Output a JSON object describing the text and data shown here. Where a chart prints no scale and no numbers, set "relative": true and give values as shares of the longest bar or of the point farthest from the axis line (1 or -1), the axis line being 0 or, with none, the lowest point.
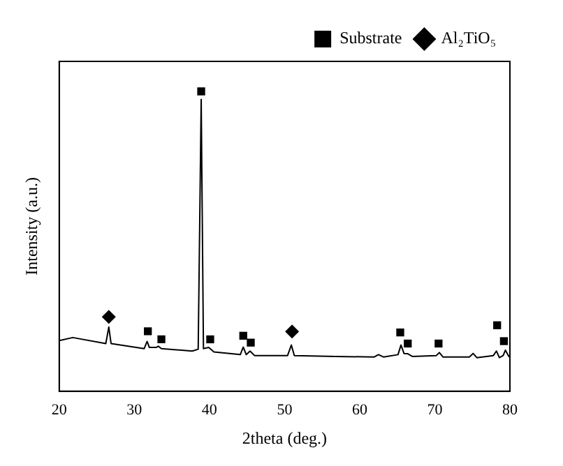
{
  "chart_data": {
    "type": "line",
    "xlabel": "2theta (deg.)",
    "ylabel": "Intensity (a.u.)",
    "relative": true,
    "xlim": [
      20,
      80
    ],
    "xticks": [
      20,
      30,
      40,
      50,
      60,
      70,
      80
    ],
    "legend": "top right",
    "series": [
      {
        "type": "line",
        "color": "#000000",
        "marker": "none",
        "x": [
          20,
          21.8,
          26.2,
          26.6,
          26.9,
          31.3,
          31.7,
          32.0,
          32.9,
          33.2,
          33.6,
          37.7,
          38.5,
          38.9,
          39.2,
          39.9,
          40.6,
          44.1,
          44.5,
          44.9,
          45.4,
          46.0,
          50.4,
          50.9,
          51.3,
          56.8,
          61.9,
          62.5,
          63.2,
          65.1,
          65.5,
          65.9,
          66.4,
          67.0,
          70.2,
          70.6,
          71.1,
          74.6,
          75.1,
          75.6,
          77.8,
          78.2,
          78.6,
          79.1,
          79.4,
          79.9
        ],
        "values": [
          0.169,
          0.179,
          0.159,
          0.214,
          0.159,
          0.142,
          0.166,
          0.146,
          0.146,
          0.15,
          0.142,
          0.134,
          0.14,
          0.973,
          0.142,
          0.146,
          0.131,
          0.122,
          0.147,
          0.122,
          0.134,
          0.119,
          0.119,
          0.154,
          0.119,
          0.116,
          0.114,
          0.122,
          0.114,
          0.122,
          0.154,
          0.126,
          0.125,
          0.116,
          0.119,
          0.129,
          0.114,
          0.114,
          0.126,
          0.112,
          0.119,
          0.134,
          0.112,
          0.119,
          0.137,
          0.114
        ]
      },
      {
        "type": "scatter",
        "name": "Substrate",
        "color": "#000000",
        "marker": "square",
        "x": [
          31.8,
          33.6,
          38.9,
          40.1,
          44.5,
          45.5,
          65.4,
          66.4,
          70.5,
          78.3,
          79.2
        ],
        "values": [
          0.2,
          0.173,
          1,
          0.173,
          0.185,
          0.162,
          0.196,
          0.159,
          0.159,
          0.22,
          0.167
        ]
      },
      {
        "type": "scatter",
        "name": "Al₂TiO₅",
        "color": "#000000",
        "marker": "diamond",
        "x": [
          26.6,
          51.0
        ],
        "values": [
          0.248,
          0.199
        ]
      }
    ]
  }
}
